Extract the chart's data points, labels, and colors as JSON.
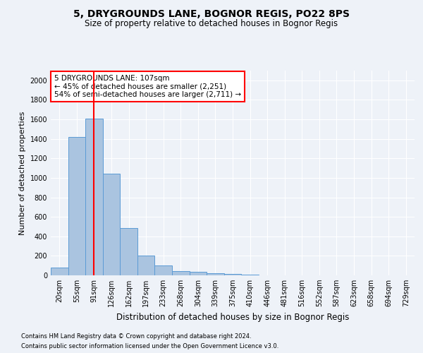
{
  "title1": "5, DRYGROUNDS LANE, BOGNOR REGIS, PO22 8PS",
  "title2": "Size of property relative to detached houses in Bognor Regis",
  "xlabel": "Distribution of detached houses by size in Bognor Regis",
  "ylabel": "Number of detached properties",
  "categories": [
    "20sqm",
    "55sqm",
    "91sqm",
    "126sqm",
    "162sqm",
    "197sqm",
    "233sqm",
    "268sqm",
    "304sqm",
    "339sqm",
    "375sqm",
    "410sqm",
    "446sqm",
    "481sqm",
    "516sqm",
    "552sqm",
    "587sqm",
    "623sqm",
    "658sqm",
    "694sqm",
    "729sqm"
  ],
  "values": [
    80,
    1420,
    1610,
    1045,
    485,
    205,
    100,
    45,
    35,
    22,
    18,
    10,
    3,
    2,
    1,
    1,
    0,
    0,
    0,
    0,
    0
  ],
  "bar_color": "#aac4e0",
  "bar_edge_color": "#5b9bd5",
  "vline_x_index": 2,
  "vline_color": "red",
  "annotation_text": "5 DRYGROUNDS LANE: 107sqm\n← 45% of detached houses are smaller (2,251)\n54% of semi-detached houses are larger (2,711) →",
  "annotation_box_color": "white",
  "annotation_box_edge_color": "red",
  "ylim": [
    0,
    2100
  ],
  "yticks": [
    0,
    200,
    400,
    600,
    800,
    1000,
    1200,
    1400,
    1600,
    1800,
    2000
  ],
  "footnote1": "Contains HM Land Registry data © Crown copyright and database right 2024.",
  "footnote2": "Contains public sector information licensed under the Open Government Licence v3.0.",
  "background_color": "#eef2f8",
  "grid_color": "white",
  "title1_fontsize": 10,
  "title2_fontsize": 8.5,
  "ylabel_fontsize": 8,
  "xlabel_fontsize": 8.5,
  "tick_fontsize": 7,
  "footnote_fontsize": 6
}
